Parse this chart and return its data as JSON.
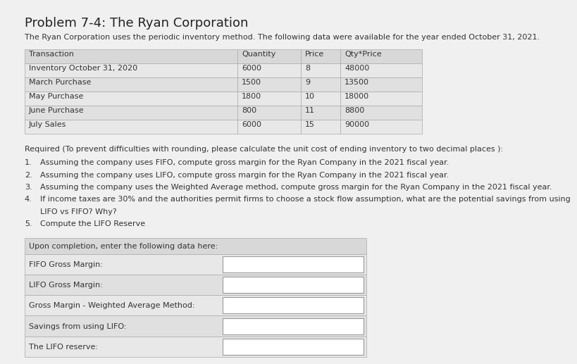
{
  "title": "Problem 7-4: The Ryan Corporation",
  "subtitle": "The Ryan Corporation uses the periodic inventory method. The following data were available for the year ended October 31, 2021.",
  "table_headers": [
    "Transaction",
    "Quantity",
    "Price",
    "Qty*Price"
  ],
  "table_rows": [
    [
      "Inventory October 31, 2020",
      "6000",
      "8",
      "48000"
    ],
    [
      "March Purchase",
      "1500",
      "9",
      "13500"
    ],
    [
      "May Purchase",
      "1800",
      "10",
      "18000"
    ],
    [
      "June Purchase",
      "800",
      "11",
      "8800"
    ],
    [
      "July Sales",
      "6000",
      "15",
      "90000"
    ]
  ],
  "required_text": "Required (To prevent difficulties with rounding, please calculate the unit cost of ending inventory to two decimal places ):",
  "numbered_items": [
    "Assuming the company uses FIFO, compute gross margin for the Ryan Company in the 2021 fiscal year.",
    "Assuming the company uses LIFO, compute gross margin for the Ryan Company in the 2021 fiscal year.",
    "Assuming the company uses the Weighted Average method, compute gross margin for the Ryan Company in the 2021 fiscal year.",
    "If income taxes are 30% and the authorities permit firms to choose a stock flow assumption, what are the potential savings from using",
    "LIFO vs FIFO? Why?",
    "Compute the LIFO Reserve"
  ],
  "numbered_prefixes": [
    "1.",
    "2.",
    "3.",
    "4.",
    "",
    "5."
  ],
  "completion_header": "Upon completion, enter the following data here:",
  "completion_rows": [
    "FIFO Gross Margin:",
    "LIFO Gross Margin:",
    "Gross Margin - Weighted Average Method:",
    "Savings from using LIFO:",
    "The LIFO reserve:"
  ],
  "bg_color": "#f0f0f0",
  "table_header_bg": "#d8d8d8",
  "table_row_even_bg": "#e8e8e8",
  "table_row_odd_bg": "#e0e0e0",
  "table_border_color": "#aaaaaa",
  "input_box_color": "#ffffff",
  "title_fontsize": 13,
  "body_fontsize": 8.0,
  "text_color": "#333333"
}
